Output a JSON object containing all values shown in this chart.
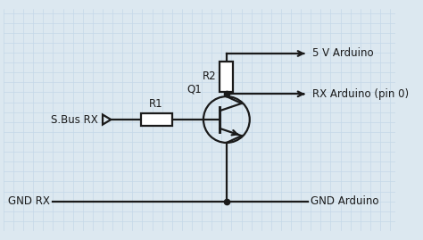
{
  "background_color": "#dce8f0",
  "grid_color": "#c5d8e8",
  "line_color": "#1a1a1a",
  "text_color": "#1a1a1a",
  "figsize": [
    4.74,
    2.69
  ],
  "dpi": 100,
  "labels": {
    "5V": "5 V Arduino",
    "RX": "RX Arduino (pin 0)",
    "GND_RX": "GND RX",
    "GND_Arduino": "GND Arduino",
    "S_Bus": "S.Bus RX",
    "R1": "R1",
    "R2": "R2",
    "Q1": "Q1"
  },
  "font_size": 8.5
}
